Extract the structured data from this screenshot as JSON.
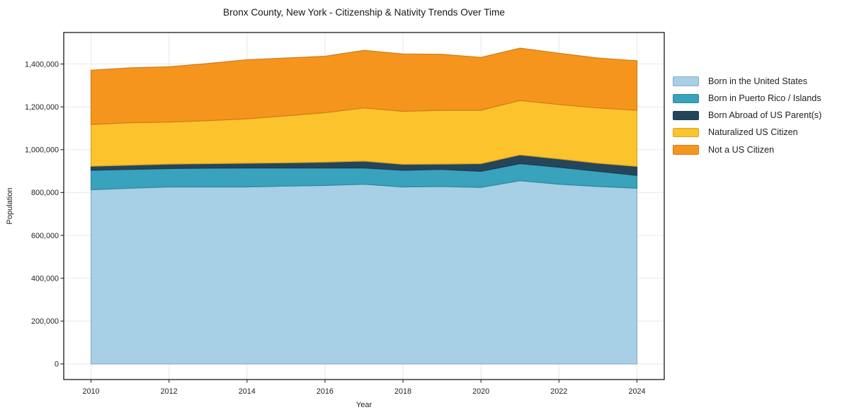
{
  "figure": {
    "background": "#ffffff",
    "plot_background": "#ffffff",
    "spine_color": "#1a1a1a"
  },
  "chart_data": {
    "type": "area",
    "stacked": true,
    "title": "Bronx County, New York - Citizenship & Nativity Trends Over Time",
    "xlabel": "Year",
    "ylabel": "Population",
    "x": [
      2010,
      2011,
      2012,
      2013,
      2014,
      2015,
      2016,
      2017,
      2018,
      2019,
      2020,
      2021,
      2022,
      2023,
      2024
    ],
    "series": [
      {
        "name": "Born in the United States",
        "color": "#a7cfe5",
        "values": [
          813000,
          820000,
          826000,
          826000,
          826000,
          830000,
          833000,
          839000,
          826000,
          828000,
          824000,
          855000,
          839000,
          828000,
          820000
        ]
      },
      {
        "name": "Born in Puerto Rico / Islands",
        "color": "#39a2bc",
        "values": [
          91000,
          88000,
          86000,
          88000,
          89000,
          85000,
          82000,
          76000,
          78000,
          80000,
          75000,
          80000,
          79000,
          71000,
          60000
        ]
      },
      {
        "name": "Born Abroad of US Parent(s)",
        "color": "#25465a",
        "values": [
          19000,
          20000,
          21000,
          21000,
          22000,
          24000,
          27000,
          32000,
          28000,
          25000,
          36000,
          41000,
          39000,
          38000,
          42000
        ]
      },
      {
        "name": "Naturalized US Citizen",
        "color": "#fcc32c",
        "values": [
          195000,
          198000,
          196000,
          201000,
          207000,
          219000,
          231000,
          248000,
          247000,
          251000,
          249000,
          254000,
          254000,
          258000,
          262000
        ]
      },
      {
        "name": "Not a US Citizen",
        "color": "#f6951e",
        "values": [
          253000,
          256000,
          258000,
          266000,
          276000,
          270000,
          263000,
          269000,
          268000,
          261000,
          247000,
          244000,
          239000,
          233000,
          231000
        ]
      }
    ],
    "xticks": [
      2010,
      2012,
      2014,
      2016,
      2018,
      2020,
      2022,
      2024
    ],
    "yticks": [
      0,
      200000,
      400000,
      600000,
      800000,
      1000000,
      1200000,
      1400000
    ],
    "xlim": [
      2009.3,
      2024.7
    ],
    "ylim": [
      -73000,
      1547000
    ],
    "grid": true,
    "grid_color": "#e8e8e8",
    "legend_position": "right",
    "legend_frame": false
  }
}
